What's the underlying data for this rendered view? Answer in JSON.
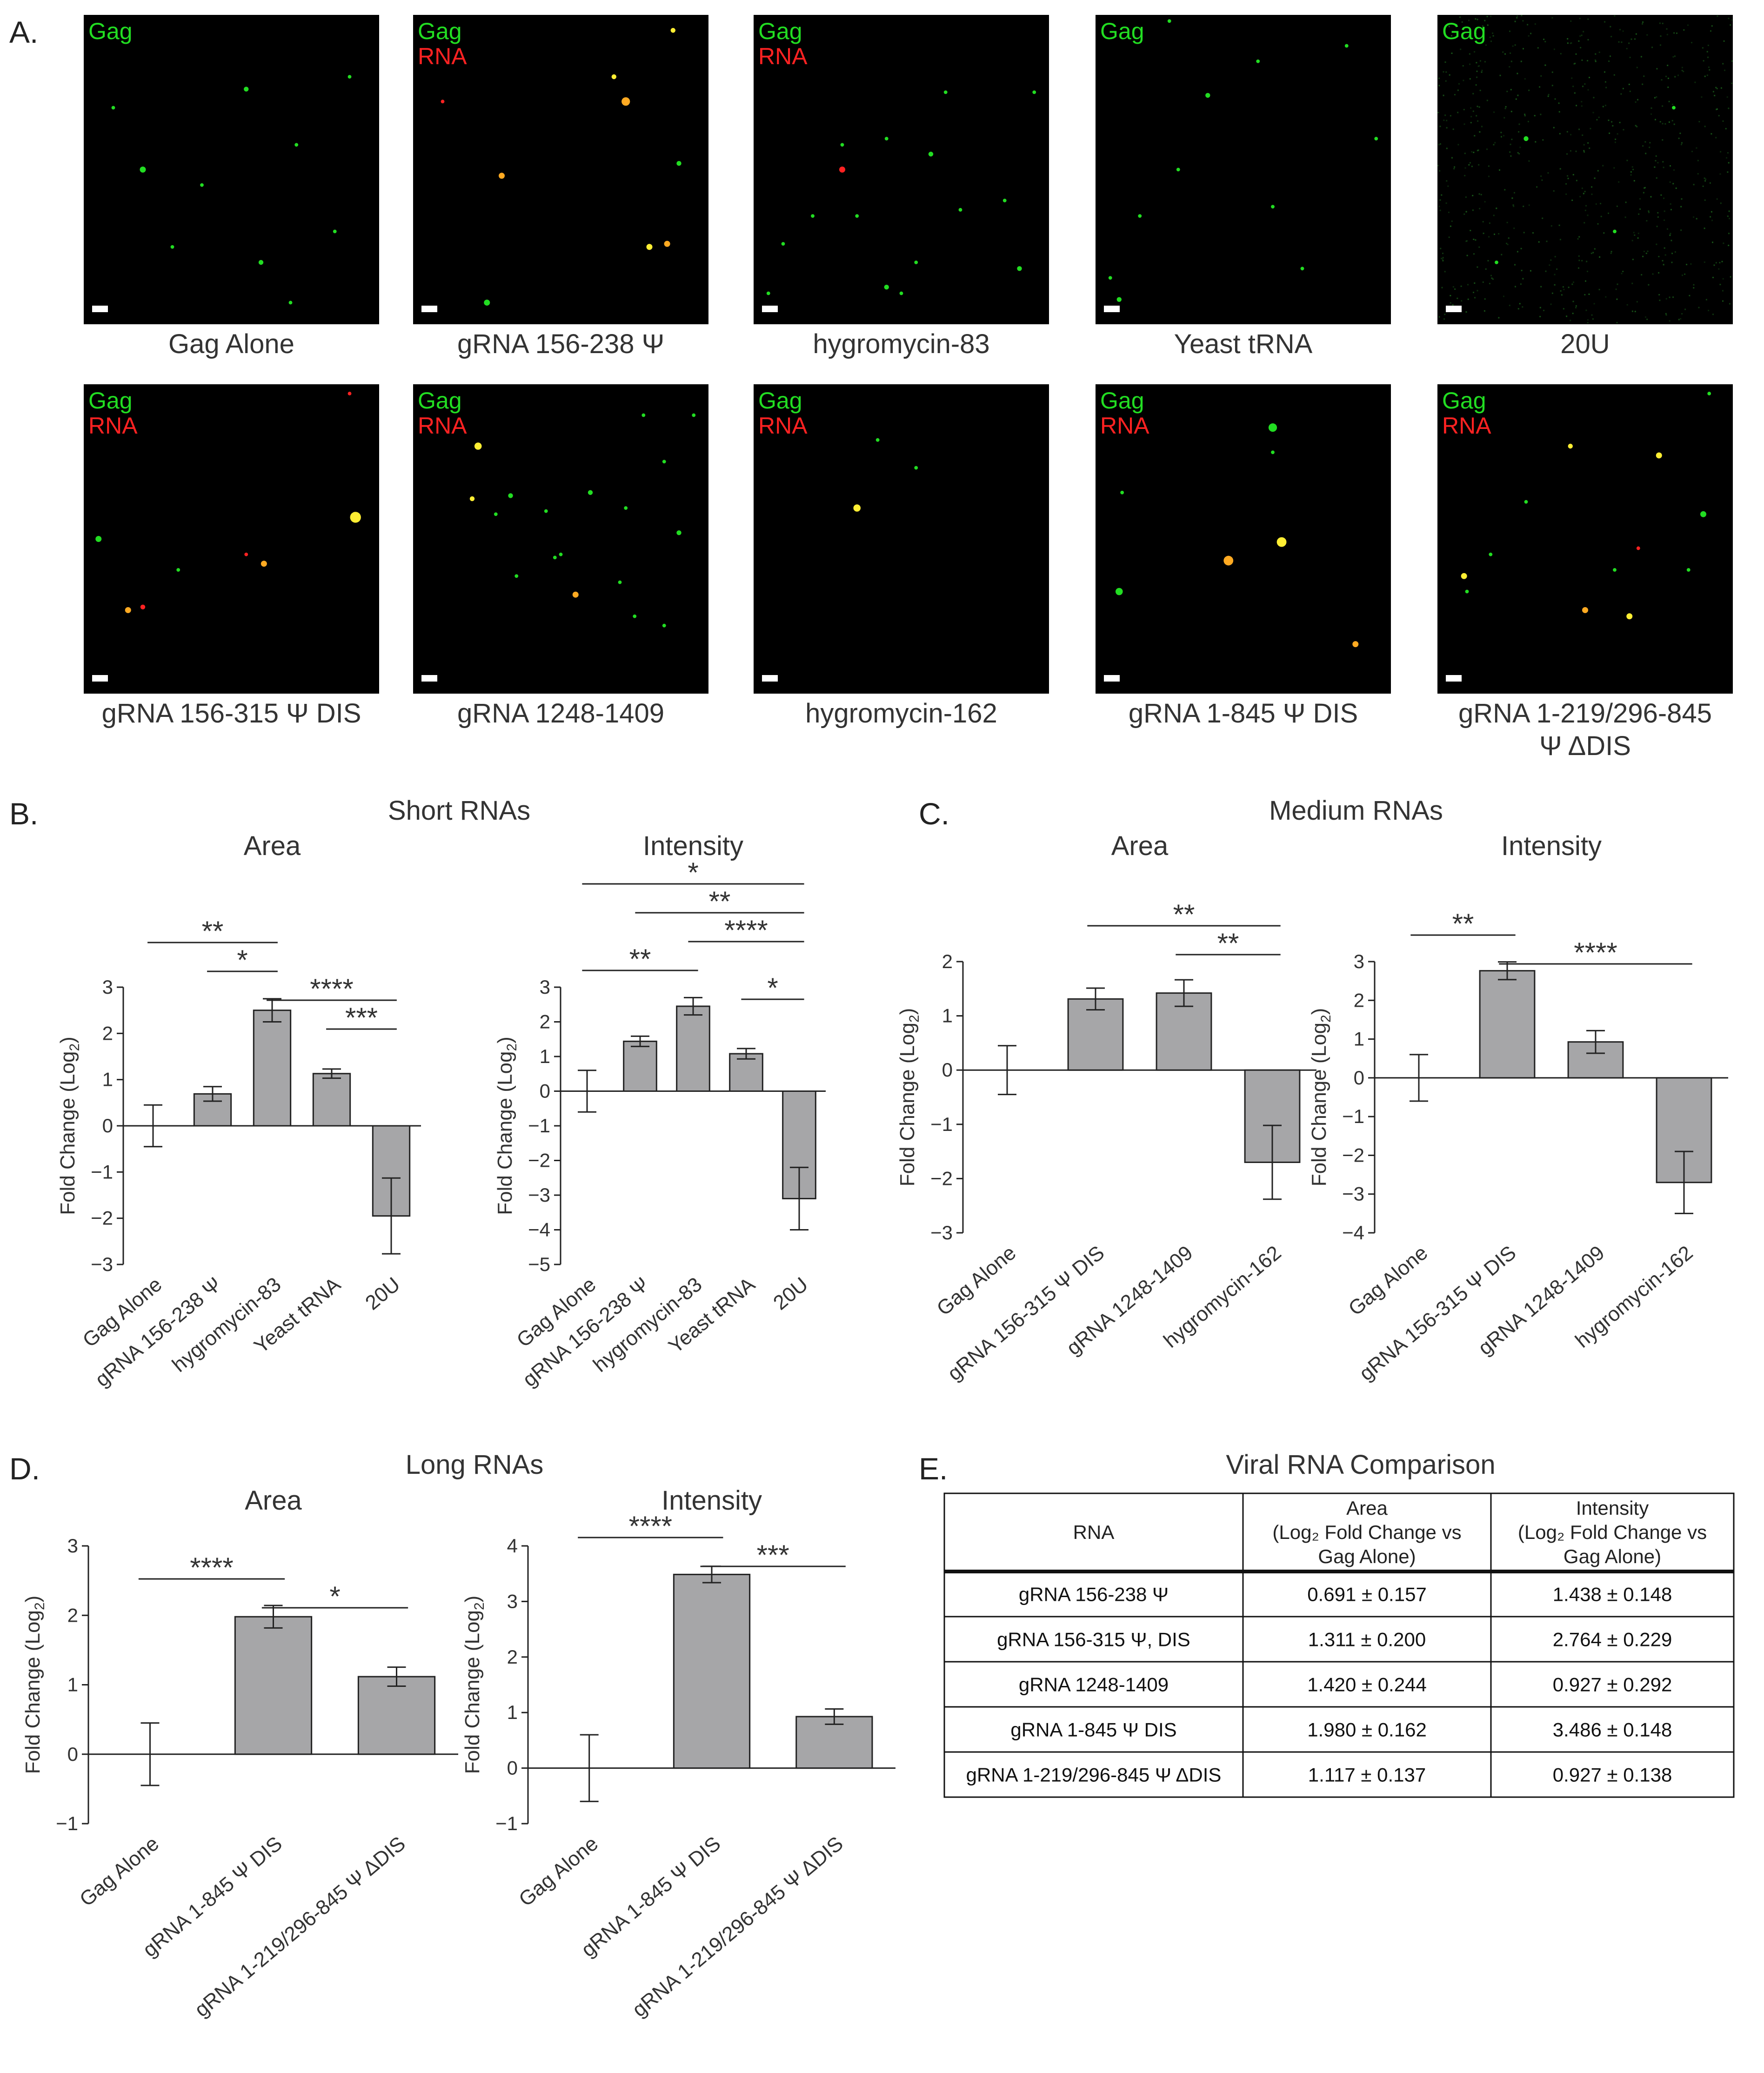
{
  "panel_labels": {
    "A": "A.",
    "B": "B.",
    "C": "C.",
    "D": "D.",
    "E": "E."
  },
  "microscopy": {
    "green_label": "Gag",
    "red_label": "RNA",
    "green_color": "#22dd22",
    "red_color": "#ff2222",
    "images": [
      {
        "caption": "Gag Alone",
        "red": false,
        "dots": [
          [
            0.55,
            0.24,
            "g",
            4
          ],
          [
            0.9,
            0.2,
            "g",
            3
          ],
          [
            0.2,
            0.5,
            "g",
            5
          ],
          [
            0.72,
            0.42,
            "g",
            3
          ],
          [
            0.6,
            0.8,
            "g",
            4
          ],
          [
            0.3,
            0.75,
            "g",
            3
          ],
          [
            0.85,
            0.7,
            "g",
            3
          ],
          [
            0.1,
            0.3,
            "g",
            3
          ],
          [
            0.4,
            0.55,
            "g",
            3
          ],
          [
            0.7,
            0.93,
            "g",
            3
          ]
        ]
      },
      {
        "caption": "gRNA 156-238 Ψ",
        "red": true,
        "dots": [
          [
            0.72,
            0.28,
            "o",
            7
          ],
          [
            0.68,
            0.2,
            "y",
            4
          ],
          [
            0.88,
            0.05,
            "y",
            4
          ],
          [
            0.3,
            0.52,
            "o",
            5
          ],
          [
            0.8,
            0.75,
            "y",
            5
          ],
          [
            0.86,
            0.74,
            "o",
            5
          ],
          [
            0.25,
            0.93,
            "g",
            5
          ],
          [
            0.9,
            0.48,
            "g",
            4
          ],
          [
            0.1,
            0.28,
            "r",
            3
          ]
        ]
      },
      {
        "caption": "hygromycin-83",
        "red": true,
        "dots": [
          [
            0.3,
            0.5,
            "r",
            5
          ],
          [
            0.3,
            0.42,
            "g",
            3
          ],
          [
            0.45,
            0.4,
            "g",
            3
          ],
          [
            0.1,
            0.74,
            "g",
            3
          ],
          [
            0.6,
            0.45,
            "g",
            4
          ],
          [
            0.9,
            0.82,
            "g",
            4
          ],
          [
            0.45,
            0.88,
            "g",
            4
          ],
          [
            0.5,
            0.9,
            "g",
            3
          ],
          [
            0.7,
            0.63,
            "g",
            3
          ],
          [
            0.85,
            0.6,
            "g",
            3
          ],
          [
            0.2,
            0.65,
            "g",
            3
          ],
          [
            0.35,
            0.65,
            "g",
            3
          ],
          [
            0.65,
            0.25,
            "g",
            3
          ],
          [
            0.95,
            0.25,
            "g",
            3
          ],
          [
            0.05,
            0.9,
            "g",
            3
          ],
          [
            0.55,
            0.8,
            "g",
            3
          ]
        ]
      },
      {
        "caption": "Yeast tRNA",
        "red": false,
        "dots": [
          [
            0.38,
            0.26,
            "g",
            4
          ],
          [
            0.55,
            0.15,
            "g",
            3
          ],
          [
            0.85,
            0.1,
            "g",
            3
          ],
          [
            0.95,
            0.4,
            "g",
            3
          ],
          [
            0.28,
            0.5,
            "g",
            3
          ],
          [
            0.6,
            0.62,
            "g",
            3
          ],
          [
            0.7,
            0.82,
            "g",
            3
          ],
          [
            0.05,
            0.85,
            "g",
            3
          ],
          [
            0.08,
            0.92,
            "g",
            4
          ],
          [
            0.25,
            0.02,
            "g",
            3
          ],
          [
            0.15,
            0.65,
            "g",
            3
          ]
        ]
      },
      {
        "caption": "20U",
        "red": false,
        "noise": true,
        "dots": [
          [
            0.3,
            0.4,
            "g",
            4
          ],
          [
            0.6,
            0.7,
            "g",
            3
          ],
          [
            0.2,
            0.8,
            "g",
            3
          ],
          [
            0.8,
            0.3,
            "g",
            3
          ]
        ]
      },
      {
        "caption": "gRNA 156-315 Ψ DIS",
        "red": true,
        "dots": [
          [
            0.92,
            0.43,
            "y",
            9
          ],
          [
            0.05,
            0.5,
            "g",
            5
          ],
          [
            0.32,
            0.6,
            "g",
            3
          ],
          [
            0.55,
            0.55,
            "r",
            3
          ],
          [
            0.61,
            0.58,
            "o",
            5
          ],
          [
            0.15,
            0.73,
            "o",
            5
          ],
          [
            0.2,
            0.72,
            "r",
            4
          ],
          [
            0.9,
            0.03,
            "r",
            3
          ]
        ]
      },
      {
        "caption": "gRNA 1248-1409",
        "red": true,
        "dots": [
          [
            0.22,
            0.2,
            "y",
            6
          ],
          [
            0.2,
            0.37,
            "y",
            4
          ],
          [
            0.33,
            0.36,
            "g",
            4
          ],
          [
            0.28,
            0.42,
            "g",
            3
          ],
          [
            0.45,
            0.41,
            "g",
            3
          ],
          [
            0.5,
            0.55,
            "g",
            3
          ],
          [
            0.48,
            0.56,
            "g",
            3
          ],
          [
            0.6,
            0.35,
            "g",
            4
          ],
          [
            0.72,
            0.4,
            "g",
            3
          ],
          [
            0.85,
            0.25,
            "g",
            3
          ],
          [
            0.9,
            0.48,
            "g",
            4
          ],
          [
            0.55,
            0.68,
            "o",
            5
          ],
          [
            0.7,
            0.64,
            "g",
            3
          ],
          [
            0.75,
            0.75,
            "g",
            3
          ],
          [
            0.85,
            0.78,
            "g",
            3
          ],
          [
            0.35,
            0.62,
            "g",
            3
          ],
          [
            0.78,
            0.1,
            "g",
            3
          ],
          [
            0.95,
            0.1,
            "g",
            3
          ]
        ]
      },
      {
        "caption": "hygromycin-162",
        "red": true,
        "dots": [
          [
            0.35,
            0.4,
            "y",
            6
          ],
          [
            0.55,
            0.27,
            "g",
            3
          ],
          [
            0.42,
            0.18,
            "g",
            3
          ]
        ]
      },
      {
        "caption": "gRNA 1-845 Ψ DIS",
        "red": true,
        "dots": [
          [
            0.6,
            0.14,
            "g",
            7
          ],
          [
            0.45,
            0.57,
            "o",
            8
          ],
          [
            0.63,
            0.51,
            "y",
            8
          ],
          [
            0.08,
            0.67,
            "g",
            6
          ],
          [
            0.88,
            0.84,
            "o",
            5
          ],
          [
            0.09,
            0.35,
            "g",
            3
          ],
          [
            0.6,
            0.22,
            "g",
            3
          ]
        ]
      },
      {
        "caption": "gRNA 1-219/296-845 Ψ ΔDIS",
        "red": true,
        "dots": [
          [
            0.45,
            0.2,
            "y",
            4
          ],
          [
            0.75,
            0.23,
            "y",
            5
          ],
          [
            0.9,
            0.42,
            "g",
            5
          ],
          [
            0.18,
            0.55,
            "g",
            3
          ],
          [
            0.09,
            0.62,
            "y",
            5
          ],
          [
            0.1,
            0.67,
            "g",
            3
          ],
          [
            0.5,
            0.73,
            "o",
            5
          ],
          [
            0.65,
            0.75,
            "y",
            5
          ],
          [
            0.68,
            0.53,
            "r",
            3
          ],
          [
            0.3,
            0.38,
            "g",
            3
          ],
          [
            0.85,
            0.6,
            "g",
            3
          ],
          [
            0.92,
            0.03,
            "g",
            3
          ],
          [
            0.6,
            0.6,
            "g",
            3
          ]
        ]
      }
    ]
  },
  "panels": {
    "B": {
      "title": "Short RNAs"
    },
    "C": {
      "title": "Medium RNAs"
    },
    "D": {
      "title": "Long RNAs"
    },
    "E": {
      "title": "Viral RNA Comparison"
    }
  },
  "chart_data": [
    {
      "type": "bar",
      "panel": "B",
      "title": "Area",
      "categories": [
        "Gag Alone",
        "gRNA 156-238 Ψ",
        "hygromycin-83",
        "Yeast tRNA",
        "20U"
      ],
      "values": [
        0,
        0.691,
        2.5,
        1.13,
        -1.95
      ],
      "errors": [
        0.45,
        0.157,
        0.25,
        0.1,
        0.82
      ],
      "ylabel": "Fold Change (Log2)",
      "ylim": [
        -3,
        3
      ],
      "yticks": [
        -3,
        -2,
        -1,
        0,
        1,
        2,
        3
      ],
      "significance": [
        {
          "from": 0,
          "to": 2,
          "label": "**"
        },
        {
          "from": 1,
          "to": 2,
          "label": "*"
        },
        {
          "from": 2,
          "to": 4,
          "label": "****"
        },
        {
          "from": 3,
          "to": 4,
          "label": "***"
        }
      ]
    },
    {
      "type": "bar",
      "panel": "B",
      "title": "Intensity",
      "categories": [
        "Gag Alone",
        "gRNA 156-238 Ψ",
        "hygromycin-83",
        "Yeast tRNA",
        "20U"
      ],
      "values": [
        0,
        1.438,
        2.45,
        1.08,
        -3.1
      ],
      "errors": [
        0.6,
        0.148,
        0.25,
        0.15,
        0.9
      ],
      "ylabel": "Fold Change (Log2)",
      "ylim": [
        -5,
        3
      ],
      "yticks": [
        -5,
        -4,
        -3,
        -2,
        -1,
        0,
        1,
        2,
        3
      ],
      "significance": [
        {
          "from": 0,
          "to": 4,
          "label": "*"
        },
        {
          "from": 1,
          "to": 4,
          "label": "**"
        },
        {
          "from": 2,
          "to": 4,
          "label": "****"
        },
        {
          "from": 0,
          "to": 2,
          "label": "**"
        },
        {
          "from": 3,
          "to": 4,
          "label": "*"
        }
      ]
    },
    {
      "type": "bar",
      "panel": "C",
      "title": "Area",
      "categories": [
        "Gag Alone",
        "gRNA 156-315 Ψ DIS",
        "gRNA 1248-1409",
        "hygromycin-162"
      ],
      "values": [
        0,
        1.311,
        1.42,
        -1.7
      ],
      "errors": [
        0.45,
        0.2,
        0.244,
        0.68
      ],
      "ylabel": "Fold Change (Log2)",
      "ylim": [
        -3,
        2
      ],
      "yticks": [
        -3,
        -2,
        -1,
        0,
        1,
        2
      ],
      "significance": [
        {
          "from": 1,
          "to": 3,
          "label": "**"
        },
        {
          "from": 2,
          "to": 3,
          "label": "**"
        }
      ]
    },
    {
      "type": "bar",
      "panel": "C",
      "title": "Intensity",
      "categories": [
        "Gag Alone",
        "gRNA 156-315 Ψ DIS",
        "gRNA 1248-1409",
        "hygromycin-162"
      ],
      "values": [
        0,
        2.764,
        0.927,
        -2.7
      ],
      "errors": [
        0.6,
        0.229,
        0.292,
        0.8
      ],
      "ylabel": "Fold Change (Log2)",
      "ylim": [
        -4,
        3
      ],
      "yticks": [
        -4,
        -3,
        -2,
        -1,
        0,
        1,
        2,
        3
      ],
      "significance": [
        {
          "from": 0,
          "to": 1,
          "label": "**"
        },
        {
          "from": 1,
          "to": 3,
          "label": "****"
        }
      ]
    },
    {
      "type": "bar",
      "panel": "D",
      "title": "Area",
      "categories": [
        "Gag Alone",
        "gRNA 1-845 Ψ DIS",
        "gRNA 1-219/296-845 Ψ ΔDIS"
      ],
      "values": [
        0,
        1.98,
        1.117
      ],
      "errors": [
        0.45,
        0.162,
        0.137
      ],
      "ylabel": "Fold Change (Log2)",
      "ylim": [
        -1,
        3
      ],
      "yticks": [
        -1,
        0,
        1,
        2,
        3
      ],
      "significance": [
        {
          "from": 0,
          "to": 1,
          "label": "****"
        },
        {
          "from": 1,
          "to": 2,
          "label": "*"
        }
      ]
    },
    {
      "type": "bar",
      "panel": "D",
      "title": "Intensity",
      "categories": [
        "Gag Alone",
        "gRNA 1-845 Ψ DIS",
        "gRNA 1-219/296-845 Ψ ΔDIS"
      ],
      "values": [
        0,
        3.486,
        0.927
      ],
      "errors": [
        0.6,
        0.148,
        0.138
      ],
      "ylabel": "Fold Change (Log2)",
      "ylim": [
        -1,
        4
      ],
      "yticks": [
        -1,
        0,
        1,
        2,
        3,
        4
      ],
      "significance": [
        {
          "from": 0,
          "to": 1,
          "label": "****"
        },
        {
          "from": 1,
          "to": 2,
          "label": "***"
        }
      ]
    },
    {
      "type": "table",
      "panel": "E",
      "title": "Viral RNA Comparison",
      "columns": [
        "RNA",
        "Area (Log2 Fold Change vs Gag Alone)",
        "Intensity (Log2 Fold Change vs Gag Alone)"
      ],
      "rows": [
        [
          "gRNA 156-238 Ψ",
          "0.691 ± 0.157",
          "1.438 ± 0.148"
        ],
        [
          "gRNA 156-315 Ψ, DIS",
          "1.311 ± 0.200",
          "2.764 ± 0.229"
        ],
        [
          "gRNA 1248-1409",
          "1.420 ± 0.244",
          "0.927 ± 0.292"
        ],
        [
          "gRNA 1-845 Ψ DIS",
          "1.980 ± 0.162",
          "3.486 ± 0.148"
        ],
        [
          "gRNA 1-219/296-845 Ψ ΔDIS",
          "1.117 ± 0.137",
          "0.927 ± 0.138"
        ]
      ]
    }
  ],
  "table_header": {
    "col1": "RNA",
    "col2_lines": [
      "Area",
      "(Log₂ Fold Change vs",
      "Gag Alone)"
    ],
    "col3_lines": [
      "Intensity",
      "(Log₂ Fold Change vs",
      "Gag Alone)"
    ]
  },
  "colors": {
    "bar": "#a6a6a8",
    "axis": "#222222",
    "text": "#333333"
  }
}
